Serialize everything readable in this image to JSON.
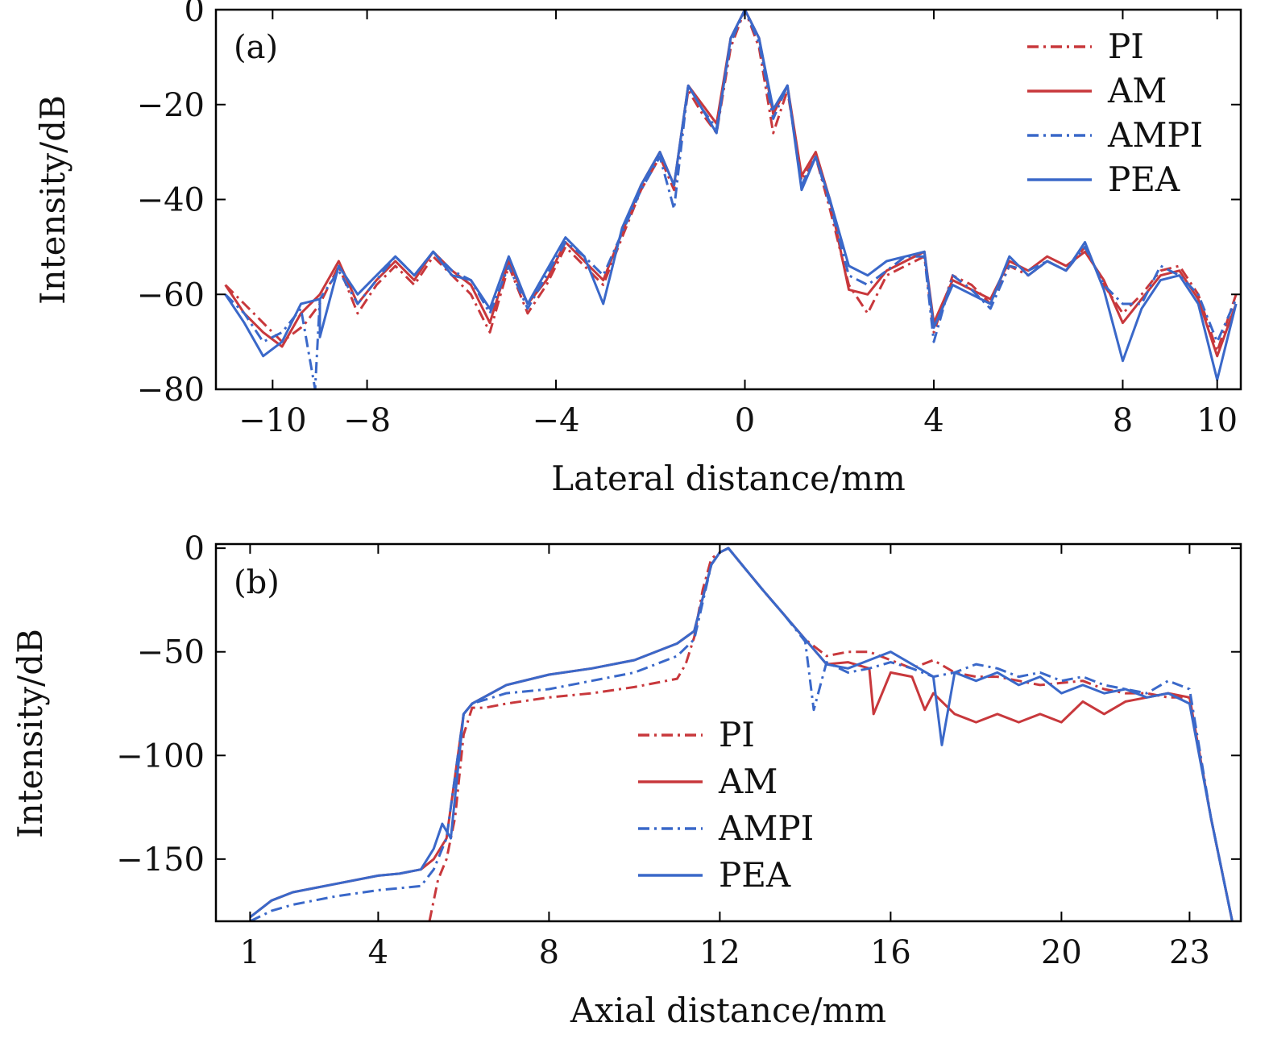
{
  "colors": {
    "PI": "#c8383c",
    "AM": "#c8383c",
    "AMPI": "#3a68c9",
    "PEA": "#3a68c9"
  },
  "chart_data": [
    {
      "type": "line",
      "panel": "(a)",
      "xlabel": "Lateral distance/mm",
      "ylabel": "Intensity/dB",
      "xlim": [
        -11.2,
        10.5
      ],
      "ylim": [
        -80,
        0
      ],
      "xticks": [
        -10,
        -8,
        -4,
        0,
        4,
        8,
        10
      ],
      "xtick_labels": [
        "−10",
        "−8",
        "−4",
        "0",
        "4",
        "8",
        "10"
      ],
      "yticks": [
        0,
        -20,
        -40,
        -60,
        -80
      ],
      "ytick_labels": [
        "0",
        "−20",
        "−40",
        "−60",
        "−80"
      ],
      "legend_position": "top-right",
      "series": [
        {
          "name": "PI",
          "style": "dashdot",
          "color": "#c8383c",
          "x": [
            -11,
            -10.6,
            -10.2,
            -9.8,
            -9.4,
            -9.0,
            -8.6,
            -8.2,
            -7.8,
            -7.4,
            -7.0,
            -6.6,
            -6.2,
            -5.8,
            -5.4,
            -5.0,
            -4.6,
            -4.2,
            -3.8,
            -3.4,
            -3.0,
            -2.6,
            -2.2,
            -1.8,
            -1.5,
            -1.2,
            -0.9,
            -0.6,
            -0.3,
            0,
            0.3,
            0.6,
            0.9,
            1.2,
            1.5,
            1.8,
            2.2,
            2.6,
            3.0,
            3.4,
            3.8,
            4.0,
            4.4,
            4.8,
            5.2,
            5.6,
            6.0,
            6.4,
            6.8,
            7.2,
            7.6,
            8.0,
            8.4,
            8.8,
            9.2,
            9.6,
            10.0,
            10.4
          ],
          "y": [
            -58,
            -62,
            -66,
            -70,
            -67,
            -62,
            -54,
            -64,
            -58,
            -54,
            -58,
            -52,
            -56,
            -60,
            -68,
            -54,
            -64,
            -58,
            -50,
            -54,
            -58,
            -48,
            -38,
            -31,
            -38,
            -17,
            -22,
            -26,
            -8,
            0,
            -8,
            -26,
            -17,
            -36,
            -31,
            -42,
            -58,
            -64,
            -56,
            -54,
            -52,
            -68,
            -56,
            -58,
            -62,
            -54,
            -56,
            -53,
            -55,
            -50,
            -58,
            -64,
            -60,
            -55,
            -54,
            -60,
            -72,
            -60
          ],
          "dip_x": [
            -9.3
          ],
          "dip_y": [
            -66
          ]
        },
        {
          "name": "AM",
          "style": "solid",
          "color": "#c8383c",
          "x": [
            -11,
            -10.6,
            -10.2,
            -9.8,
            -9.4,
            -9.0,
            -8.6,
            -8.2,
            -7.8,
            -7.4,
            -7.0,
            -6.6,
            -6.2,
            -5.8,
            -5.4,
            -5.0,
            -4.6,
            -4.2,
            -3.8,
            -3.4,
            -3.0,
            -2.6,
            -2.2,
            -1.8,
            -1.5,
            -1.2,
            -0.9,
            -0.6,
            -0.3,
            0,
            0.3,
            0.6,
            0.9,
            1.2,
            1.5,
            1.8,
            2.2,
            2.6,
            3.0,
            3.4,
            3.8,
            4.0,
            4.4,
            4.8,
            5.2,
            5.6,
            6.0,
            6.4,
            6.8,
            7.2,
            7.6,
            8.0,
            8.4,
            8.8,
            9.2,
            9.6,
            10.0,
            10.4
          ],
          "y": [
            -58,
            -64,
            -68,
            -71,
            -64,
            -60,
            -53,
            -62,
            -57,
            -53,
            -57,
            -51,
            -55,
            -58,
            -66,
            -53,
            -62,
            -57,
            -49,
            -53,
            -57,
            -47,
            -37,
            -30,
            -37,
            -16,
            -20,
            -24,
            -6,
            0,
            -6,
            -22,
            -16,
            -35,
            -30,
            -40,
            -59,
            -60,
            -55,
            -53,
            -51,
            -66,
            -57,
            -59,
            -61,
            -53,
            -55,
            -52,
            -54,
            -51,
            -57,
            -66,
            -61,
            -56,
            -55,
            -61,
            -73,
            -62
          ],
          "dip_x": [],
          "dip_y": []
        },
        {
          "name": "AMPI",
          "style": "dashdot",
          "color": "#3a68c9",
          "x": [
            -11,
            -10.6,
            -10.2,
            -9.8,
            -9.4,
            -9.0,
            -8.6,
            -8.2,
            -7.8,
            -7.4,
            -7.0,
            -6.6,
            -6.2,
            -5.8,
            -5.4,
            -5.0,
            -4.6,
            -4.2,
            -3.8,
            -3.4,
            -3.0,
            -2.6,
            -2.2,
            -1.8,
            -1.5,
            -1.2,
            -0.9,
            -0.6,
            -0.3,
            0,
            0.3,
            0.6,
            0.9,
            1.2,
            1.5,
            1.8,
            2.2,
            2.6,
            3.0,
            3.4,
            3.8,
            4.0,
            4.4,
            4.8,
            5.2,
            5.6,
            6.0,
            6.4,
            6.8,
            7.2,
            7.6,
            8.0,
            8.4,
            8.8,
            9.2,
            9.6,
            10.0,
            10.4
          ],
          "y": [
            -60,
            -64,
            -70,
            -68,
            -63,
            -61,
            -55,
            -62,
            -57,
            -52,
            -56,
            -51,
            -55,
            -57,
            -64,
            -54,
            -63,
            -56,
            -49,
            -52,
            -56,
            -47,
            -38,
            -31,
            -42,
            -16,
            -21,
            -25,
            -7,
            0,
            -7,
            -23,
            -16,
            -37,
            -31,
            -41,
            -56,
            -58,
            -55,
            -52,
            -52,
            -70,
            -56,
            -59,
            -63,
            -54,
            -55,
            -53,
            -55,
            -50,
            -58,
            -62,
            -62,
            -54,
            -56,
            -60,
            -70,
            -61
          ],
          "dip_x": [
            -9.1
          ],
          "dip_y": [
            -80
          ]
        },
        {
          "name": "PEA",
          "style": "solid",
          "color": "#3a68c9",
          "x": [
            -11,
            -10.6,
            -10.2,
            -9.8,
            -9.4,
            -9.0,
            -8.6,
            -8.2,
            -7.8,
            -7.4,
            -7.0,
            -6.6,
            -6.2,
            -5.8,
            -5.4,
            -5.0,
            -4.6,
            -4.2,
            -3.8,
            -3.4,
            -3.0,
            -2.6,
            -2.2,
            -1.8,
            -1.5,
            -1.2,
            -0.9,
            -0.6,
            -0.3,
            0,
            0.3,
            0.6,
            0.9,
            1.2,
            1.5,
            1.8,
            2.2,
            2.6,
            3.0,
            3.4,
            3.8,
            4.0,
            4.4,
            4.8,
            5.2,
            5.6,
            6.0,
            6.4,
            6.8,
            7.2,
            7.6,
            8.0,
            8.4,
            8.8,
            9.2,
            9.6,
            10.0,
            10.4
          ],
          "y": [
            -60,
            -66,
            -73,
            -70,
            -62,
            -61,
            -54,
            -60,
            -56,
            -52,
            -56,
            -51,
            -56,
            -57,
            -63,
            -52,
            -62,
            -55,
            -48,
            -52,
            -62,
            -46,
            -37,
            -30,
            -37,
            -16,
            -21,
            -26,
            -6,
            0,
            -6,
            -21,
            -16,
            -38,
            -31,
            -40,
            -54,
            -56,
            -53,
            -52,
            -51,
            -67,
            -58,
            -60,
            -62,
            -52,
            -56,
            -53,
            -55,
            -49,
            -59,
            -74,
            -63,
            -57,
            -56,
            -62,
            -78,
            -62
          ],
          "dip_x": [
            -9.0
          ],
          "dip_y": [
            -69
          ]
        }
      ]
    },
    {
      "type": "line",
      "panel": "(b)",
      "xlabel": "Axial distance/mm",
      "ylabel": "Intensity/dB",
      "xlim": [
        0.2,
        24.2
      ],
      "ylim": [
        -180,
        2
      ],
      "xticks": [
        1,
        4,
        8,
        12,
        16,
        20,
        23
      ],
      "xtick_labels": [
        "1",
        "4",
        "8",
        "12",
        "16",
        "20",
        "23"
      ],
      "yticks": [
        0,
        -50,
        -100,
        -150
      ],
      "ytick_labels": [
        "0",
        "−50",
        "−100",
        "−150"
      ],
      "legend_position": "center",
      "series": [
        {
          "name": "PI",
          "style": "dashdot",
          "color": "#c8383c",
          "x": [
            5.2,
            5.4,
            5.6,
            5.8,
            6.0,
            6.2,
            6.5,
            7,
            8,
            9,
            10,
            11,
            11.2,
            11.4,
            11.6,
            11.8,
            12,
            12.2,
            12.6,
            13,
            13.5,
            14,
            14.5,
            15,
            15.5,
            16,
            16.5,
            17,
            17.5,
            18,
            18.5,
            19,
            19.5,
            20,
            20.5,
            21,
            21.5,
            22,
            22.5,
            23,
            23.5,
            24
          ],
          "y": [
            -180,
            -160,
            -150,
            -130,
            -90,
            -77,
            -77,
            -75,
            -72,
            -70,
            -67,
            -63,
            -56,
            -43,
            -20,
            -5,
            -2,
            0,
            -10,
            -20,
            -32,
            -44,
            -52,
            -50,
            -50,
            -54,
            -58,
            -54,
            -60,
            -62,
            -62,
            -64,
            -66,
            -65,
            -64,
            -68,
            -70,
            -70,
            -72,
            -72,
            -130,
            -180
          ]
        },
        {
          "name": "AM",
          "style": "solid",
          "color": "#c8383c",
          "x": [
            1,
            1.5,
            2,
            3,
            4,
            4.5,
            5,
            5.3,
            5.6,
            5.8,
            6.0,
            6.2,
            7,
            8,
            9,
            10,
            11,
            11.4,
            11.8,
            12,
            12.2,
            12.6,
            13,
            13.5,
            14,
            14.5,
            15,
            15.5,
            15.6,
            16,
            16.5,
            16.8,
            17,
            17.5,
            18,
            18.5,
            19,
            19.5,
            20,
            20.5,
            21,
            21.5,
            22,
            22.5,
            23,
            23.5,
            24
          ],
          "y": [
            -178,
            -170,
            -166,
            -162,
            -158,
            -157,
            -155,
            -150,
            -140,
            -110,
            -80,
            -75,
            -66,
            -61,
            -58,
            -54,
            -46,
            -40,
            -8,
            -2,
            0,
            -10,
            -20,
            -32,
            -44,
            -56,
            -55,
            -58,
            -80,
            -60,
            -62,
            -78,
            -70,
            -80,
            -84,
            -80,
            -84,
            -80,
            -84,
            -74,
            -80,
            -74,
            -72,
            -70,
            -72,
            -130,
            -180
          ]
        },
        {
          "name": "AMPI",
          "style": "dashdot",
          "color": "#3a68c9",
          "x": [
            1,
            1.5,
            2,
            3,
            4,
            4.5,
            5,
            5.3,
            5.6,
            5.8,
            6.0,
            6.2,
            7,
            8,
            9,
            10,
            11,
            11.4,
            11.8,
            12,
            12.2,
            12.6,
            13,
            13.5,
            14,
            14.2,
            14.5,
            15,
            15.5,
            16,
            16.5,
            17,
            17.5,
            18,
            18.5,
            19,
            19.5,
            20,
            20.5,
            21,
            21.5,
            22,
            22.5,
            23,
            23.5,
            24
          ],
          "y": [
            -180,
            -175,
            -172,
            -168,
            -165,
            -164,
            -163,
            -155,
            -140,
            -110,
            -80,
            -75,
            -70,
            -68,
            -64,
            -60,
            -52,
            -44,
            -8,
            -2,
            0,
            -10,
            -20,
            -32,
            -45,
            -78,
            -55,
            -60,
            -58,
            -55,
            -58,
            -62,
            -60,
            -56,
            -58,
            -62,
            -60,
            -64,
            -62,
            -66,
            -68,
            -70,
            -64,
            -68,
            -130,
            -180
          ]
        },
        {
          "name": "PEA",
          "style": "solid",
          "color": "#3a68c9",
          "x": [
            1,
            1.5,
            2,
            3,
            4,
            4.5,
            5,
            5.3,
            5.5,
            5.7,
            5.9,
            6.0,
            6.2,
            7,
            8,
            9,
            10,
            11,
            11.4,
            11.8,
            12,
            12.2,
            12.6,
            13,
            13.5,
            14,
            14.5,
            15,
            15.5,
            16,
            16.5,
            17,
            17.2,
            17.5,
            18,
            18.5,
            19,
            19.5,
            20,
            20.5,
            21,
            21.5,
            22,
            22.5,
            23,
            23.5,
            24
          ],
          "y": [
            -178,
            -170,
            -166,
            -162,
            -158,
            -157,
            -155,
            -145,
            -133,
            -140,
            -100,
            -80,
            -75,
            -66,
            -61,
            -58,
            -54,
            -46,
            -40,
            -8,
            -2,
            0,
            -10,
            -20,
            -32,
            -44,
            -56,
            -58,
            -54,
            -50,
            -56,
            -62,
            -95,
            -60,
            -64,
            -60,
            -66,
            -62,
            -70,
            -66,
            -70,
            -68,
            -72,
            -70,
            -75,
            -130,
            -180
          ]
        }
      ]
    }
  ]
}
